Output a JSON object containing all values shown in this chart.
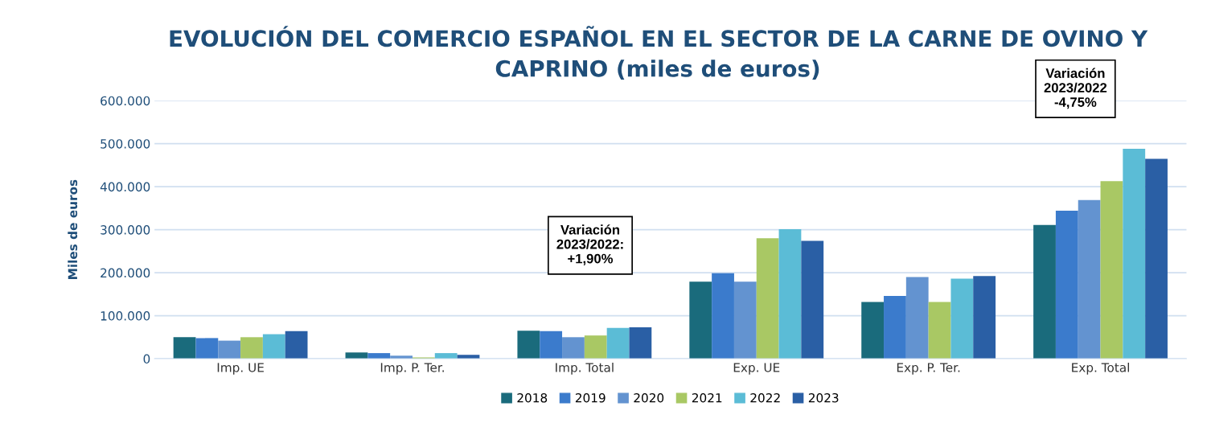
{
  "chart_data": {
    "type": "bar",
    "title": "EVOLUCIÓN DEL COMERCIO ESPAÑOL EN EL SECTOR DE LA CARNE DE OVINO Y CAPRINO (miles de euros)",
    "ylabel": "Miles de euros",
    "categories": [
      "Imp. UE",
      "Imp. P. Ter.",
      "Imp. Total",
      "Exp. UE",
      "Exp. P. Ter.",
      "Exp. Total"
    ],
    "series": [
      {
        "name": "2018",
        "color": "#1a6b7c",
        "values": [
          50000,
          14500,
          65000,
          179000,
          132000,
          311000
        ]
      },
      {
        "name": "2019",
        "color": "#3b7bcc",
        "values": [
          48000,
          13000,
          64000,
          199000,
          146000,
          344000
        ]
      },
      {
        "name": "2020",
        "color": "#6393d0",
        "values": [
          42000,
          7000,
          50000,
          179000,
          190000,
          369000
        ]
      },
      {
        "name": "2021",
        "color": "#a9c864",
        "values": [
          50000,
          3000,
          54000,
          280000,
          132000,
          413000
        ]
      },
      {
        "name": "2022",
        "color": "#5bbcd6",
        "values": [
          57000,
          13000,
          71700,
          301000,
          186000,
          488000
        ]
      },
      {
        "name": "2023",
        "color": "#2a5fa5",
        "values": [
          64000,
          9000,
          73000,
          274000,
          192000,
          465000
        ]
      }
    ],
    "ylim": [
      0,
      600000
    ],
    "yticks": [
      {
        "value": 0,
        "label": "0"
      },
      {
        "value": 100000,
        "label": "100.000"
      },
      {
        "value": 200000,
        "label": "200.000"
      },
      {
        "value": 300000,
        "label": "300.000"
      },
      {
        "value": 400000,
        "label": "400.000"
      },
      {
        "value": 500000,
        "label": "500.000"
      },
      {
        "value": 600000,
        "label": "600.000"
      }
    ],
    "grid": "y",
    "legend": "bottom",
    "annotations": [
      "Variación\n2023/2022:\n+1,90%",
      "Variación\n2023/2022\n-4,75%"
    ]
  }
}
